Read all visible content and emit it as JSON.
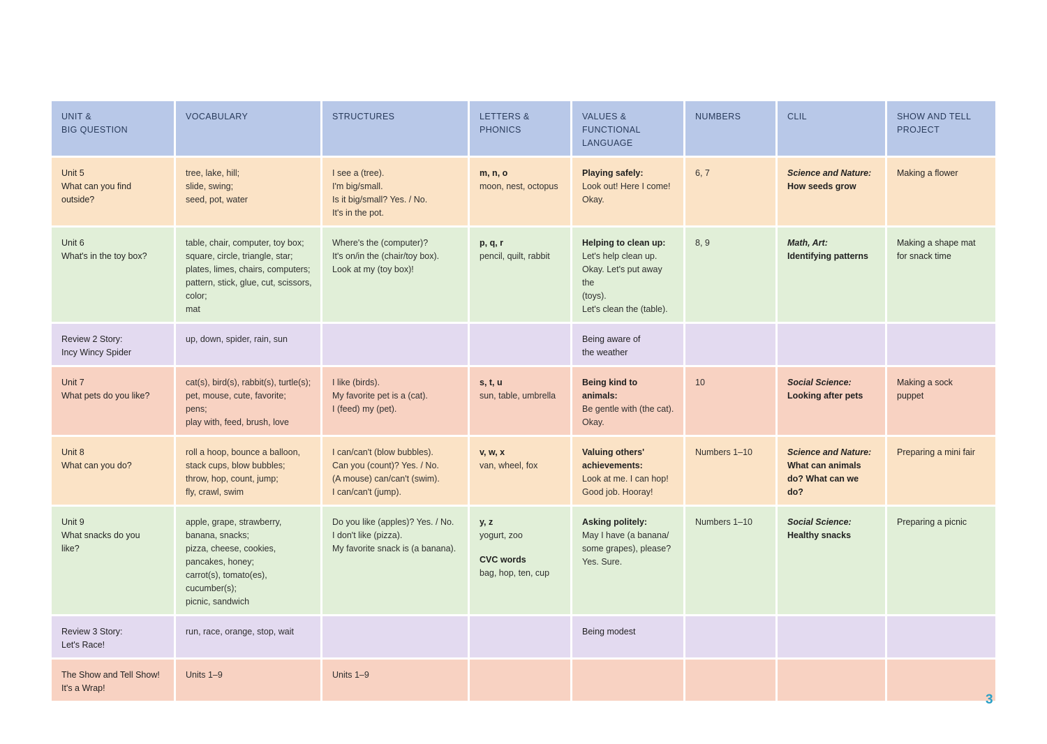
{
  "headers": [
    "UNIT &",
    "BIG QUESTION",
    "VOCABULARY",
    "STRUCTURES",
    "LETTERS &",
    "PHONICS",
    "VALUES &",
    "FUNCTIONAL",
    "LANGUAGE",
    "NUMBERS",
    "CLIL",
    "SHOW AND TELL",
    "PROJECT"
  ],
  "rows": [
    {
      "unit": [
        "Unit 5",
        "What can you find",
        "outside?"
      ],
      "vocab": [
        "tree, lake, hill;",
        "slide, swing;",
        "seed, pot, water"
      ],
      "struct": [
        "I see a (tree).",
        "I'm big/small.",
        "Is it big/small? Yes. / No.",
        "It's in the pot."
      ],
      "letters": [
        "m, n, o",
        "moon, nest, octopus"
      ],
      "values": [
        "Playing safely:",
        "Look out! Here I come!",
        "Okay."
      ],
      "numbers": "6, 7",
      "clil": [
        "Science and Nature:",
        "How seeds grow"
      ],
      "project": [
        "Making a flower"
      ]
    },
    {
      "unit": [
        "Unit 6",
        "What's in the toy box?"
      ],
      "vocab": [
        "table, chair, computer, toy box;",
        "square, circle, triangle, star;",
        "plates, limes, chairs, computers;",
        "pattern, stick, glue, cut, scissors,",
        "color;",
        "mat"
      ],
      "struct": [
        "Where's the (computer)?",
        "It's on/in the (chair/toy box).",
        "Look at my (toy box)!"
      ],
      "letters": [
        "p, q, r",
        "pencil, quilt, rabbit"
      ],
      "values": [
        "Helping to clean up:",
        "Let's help clean up.",
        "Okay. Let's put away the",
        "(toys).",
        "Let's clean the (table)."
      ],
      "numbers": "8, 9",
      "clil": [
        "Math, Art:",
        "Identifying patterns"
      ],
      "project": [
        "Making a shape mat",
        "for snack time"
      ]
    },
    {
      "unit": [
        "Review 2 Story:",
        "Incy Wincy Spider"
      ],
      "vocab": [
        "up, down, spider, rain, sun"
      ],
      "values": [
        "Being aware of",
        "the weather"
      ]
    },
    {
      "unit": [
        "Unit 7",
        "What pets do you like?"
      ],
      "vocab": [
        "cat(s), bird(s), rabbit(s), turtle(s);",
        "pet, mouse, cute, favorite;",
        "pens;",
        "play with, feed, brush, love"
      ],
      "struct": [
        "I like (birds).",
        "My favorite pet is a (cat).",
        "I (feed) my (pet)."
      ],
      "letters": [
        "s, t, u",
        "sun, table, umbrella"
      ],
      "values": [
        "Being kind to animals:",
        "Be gentle with (the cat).",
        "Okay."
      ],
      "numbers": "10",
      "clil": [
        "Social Science:",
        "Looking after pets"
      ],
      "project": [
        "Making a sock",
        "puppet"
      ]
    },
    {
      "unit": [
        "Unit 8",
        "What can you do?"
      ],
      "vocab": [
        "roll a hoop, bounce a balloon,",
        "stack cups, blow bubbles;",
        "throw, hop, count, jump;",
        "fly, crawl, swim"
      ],
      "struct": [
        "I can/can't (blow bubbles).",
        "Can you (count)? Yes. / No.",
        "(A mouse) can/can't (swim).",
        "I can/can't (jump)."
      ],
      "letters": [
        "v, w, x",
        "van, wheel, fox"
      ],
      "values": [
        "Valuing others'",
        "achievements:",
        "Look at me. I can hop!",
        "Good job. Hooray!"
      ],
      "numbers": "Numbers 1–10",
      "clil": [
        "Science and Nature:",
        "What can animals",
        "do? What can we do?"
      ],
      "project": [
        "Preparing a mini fair"
      ]
    },
    {
      "unit": [
        "Unit 9",
        "What snacks do you",
        "like?"
      ],
      "vocab": [
        "apple, grape, strawberry,",
        "banana, snacks;",
        "pizza, cheese, cookies,",
        "pancakes, honey;",
        "carrot(s), tomato(es),",
        "cucumber(s);",
        "picnic, sandwich"
      ],
      "struct": [
        "Do you like (apples)? Yes. / No.",
        "I don't like (pizza).",
        "My favorite snack is (a banana)."
      ],
      "letters": [
        "y, z",
        "yogurt, zoo",
        "CVC words",
        "bag, hop, ten, cup"
      ],
      "values": [
        "Asking politely:",
        "May I have (a banana/",
        "some grapes), please?",
        "Yes. Sure."
      ],
      "numbers": "Numbers 1–10",
      "clil": [
        "Social Science:",
        "Healthy snacks"
      ],
      "project": [
        "Preparing a picnic"
      ]
    },
    {
      "unit": [
        "Review 3 Story:",
        "Let's Race!"
      ],
      "vocab": [
        "run, race, orange, stop, wait"
      ],
      "values": [
        "Being modest"
      ]
    },
    {
      "unit": [
        "The Show and Tell Show!",
        "It's a Wrap!"
      ],
      "vocab": [
        "Units 1–9"
      ],
      "struct": [
        "Units 1–9"
      ]
    }
  ],
  "page_number": "3"
}
